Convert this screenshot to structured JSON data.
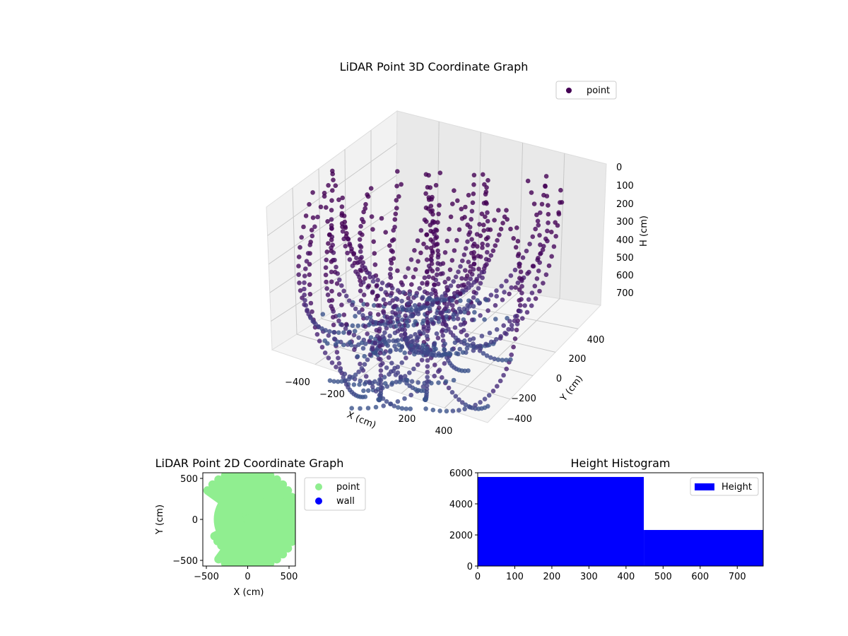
{
  "chart_data": [
    {
      "type": "scatter",
      "title": "LiDAR Point 3D Coordinate Graph",
      "xlabel": "X (cm)",
      "ylabel": "Y (cm)",
      "zlabel": "H (cm)",
      "x_ticks": [
        "−400",
        "−200",
        "200",
        "400"
      ],
      "y_ticks": [
        "−400",
        "−200",
        "0",
        "200",
        "400"
      ],
      "z_ticks": [
        "0",
        "100",
        "200",
        "300",
        "400",
        "500",
        "600",
        "700"
      ],
      "zlim": [
        770,
        0
      ],
      "legend": [
        "point"
      ],
      "legend_placement": "top-right",
      "colors": {
        "low": "#440154",
        "high": "#3b528b"
      }
    },
    {
      "type": "scatter",
      "title": "LiDAR Point 2D Coordinate Graph",
      "xlabel": "X (cm)",
      "ylabel": "Y (cm)",
      "xlim": [
        -560,
        560
      ],
      "ylim": [
        -560,
        560
      ],
      "x_ticks": [
        "−500",
        "0",
        "500"
      ],
      "y_ticks": [
        "−500",
        "0",
        "500"
      ],
      "legend": [
        {
          "label": "point",
          "color": "#90ee90"
        },
        {
          "label": "wall",
          "color": "#0000ff"
        }
      ],
      "legend_placement": "outside-right"
    },
    {
      "type": "bar",
      "title": "Height Histogram",
      "bins": [
        [
          0,
          448
        ],
        [
          448,
          770
        ]
      ],
      "values": [
        5730,
        2320
      ],
      "xlim": [
        0,
        770
      ],
      "ylim": [
        0,
        6000
      ],
      "x_ticks": [
        "0",
        "100",
        "200",
        "300",
        "400",
        "500",
        "600",
        "700"
      ],
      "y_ticks": [
        "0",
        "2000",
        "4000",
        "6000"
      ],
      "legend": [
        "Height"
      ],
      "legend_placement": "top-right",
      "color": "#0000ff"
    }
  ]
}
